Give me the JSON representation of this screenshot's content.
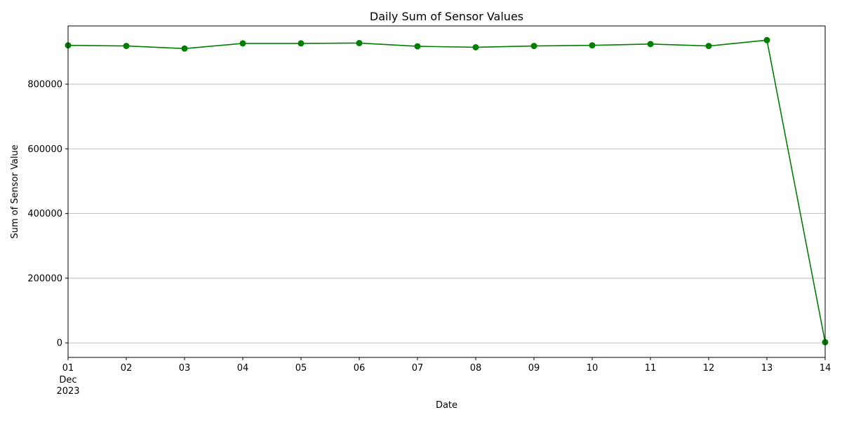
{
  "chart_data": {
    "type": "line",
    "title": "Daily Sum of Sensor Values",
    "xlabel": "Date",
    "ylabel": "Sum of Sensor Value",
    "x_month_label": "Dec",
    "x_year_label": "2023",
    "x": [
      "2023-12-01",
      "2023-12-02",
      "2023-12-03",
      "2023-12-04",
      "2023-12-05",
      "2023-12-06",
      "2023-12-07",
      "2023-12-08",
      "2023-12-09",
      "2023-12-10",
      "2023-12-11",
      "2023-12-12",
      "2023-12-13",
      "2023-12-14"
    ],
    "x_tick_labels": [
      "01",
      "02",
      "03",
      "04",
      "05",
      "06",
      "07",
      "08",
      "09",
      "10",
      "11",
      "12",
      "13",
      "14"
    ],
    "series": [
      {
        "values": [
          920000,
          918000,
          910000,
          926000,
          926000,
          927000,
          917000,
          914000,
          918000,
          920000,
          924000,
          918000,
          936000,
          2000
        ],
        "color": "#008000",
        "marker": "circle"
      }
    ],
    "y_ticks": [
      0,
      200000,
      400000,
      600000,
      800000
    ],
    "y_tick_labels": [
      "0",
      "200000",
      "400000",
      "600000",
      "800000"
    ],
    "ylim": [
      -45000,
      980000
    ],
    "grid": "y-major"
  }
}
